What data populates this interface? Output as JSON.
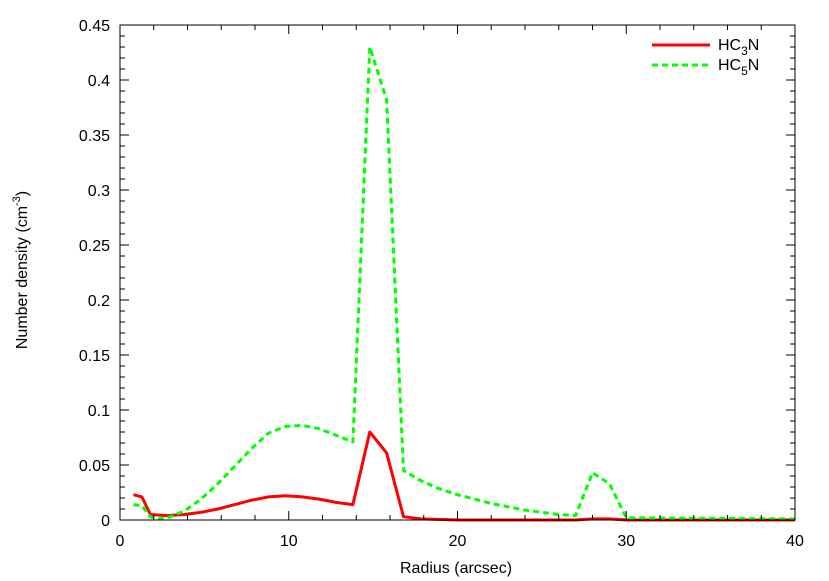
{
  "chart_data": {
    "type": "line",
    "title": "",
    "xlabel": "Radius (arcsec)",
    "ylabel": "Number density (cm",
    "ylabel_sup": "-3",
    "ylabel_close": ")",
    "xlim": [
      0,
      40
    ],
    "ylim": [
      0,
      0.45
    ],
    "x_ticks": [
      0,
      10,
      20,
      30,
      40
    ],
    "x_tick_labels": [
      "0",
      "10",
      "20",
      "30",
      "40"
    ],
    "y_ticks": [
      0,
      0.05,
      0.1,
      0.15,
      0.2,
      0.25,
      0.3,
      0.35,
      0.4,
      0.45
    ],
    "y_tick_labels": [
      "0",
      "0.05",
      "0.1",
      "0.15",
      "0.2",
      "0.25",
      "0.3",
      "0.35",
      "0.4",
      "0.45"
    ],
    "grid": false,
    "legend_position": "top-right",
    "series": [
      {
        "name": "HC3N",
        "legend": {
          "base": "HC",
          "sub": "3",
          "rest": "N"
        },
        "color": "#ff0000",
        "dash": "solid",
        "points": [
          [
            0.8,
            0.023
          ],
          [
            1.3,
            0.021
          ],
          [
            1.8,
            0.005
          ],
          [
            2.8,
            0.004
          ],
          [
            3.8,
            0.005
          ],
          [
            4.8,
            0.007
          ],
          [
            5.8,
            0.01
          ],
          [
            6.8,
            0.014
          ],
          [
            7.8,
            0.018
          ],
          [
            8.8,
            0.021
          ],
          [
            9.8,
            0.022
          ],
          [
            10.8,
            0.021
          ],
          [
            11.8,
            0.019
          ],
          [
            12.8,
            0.016
          ],
          [
            13.8,
            0.014
          ],
          [
            14.8,
            0.08
          ],
          [
            15.8,
            0.061
          ],
          [
            16.8,
            0.003
          ],
          [
            17.8,
            0.001
          ],
          [
            20,
            0.0
          ],
          [
            27,
            0.0
          ],
          [
            28,
            0.001
          ],
          [
            29,
            0.001
          ],
          [
            30,
            0.0
          ],
          [
            40,
            0.0
          ]
        ]
      },
      {
        "name": "HC5N",
        "legend": {
          "base": "HC",
          "sub": "5",
          "rest": "N"
        },
        "color": "#00ff00",
        "dash": "dashed",
        "points": [
          [
            0.8,
            0.014
          ],
          [
            1.3,
            0.013
          ],
          [
            1.8,
            0.003
          ],
          [
            2.3,
            0.001
          ],
          [
            2.8,
            0.002
          ],
          [
            3.8,
            0.008
          ],
          [
            4.8,
            0.019
          ],
          [
            5.8,
            0.033
          ],
          [
            6.8,
            0.049
          ],
          [
            7.8,
            0.065
          ],
          [
            8.8,
            0.079
          ],
          [
            9.8,
            0.085
          ],
          [
            10.8,
            0.086
          ],
          [
            11.8,
            0.083
          ],
          [
            12.8,
            0.077
          ],
          [
            13.8,
            0.071
          ],
          [
            14.8,
            0.43
          ],
          [
            15.8,
            0.382
          ],
          [
            16.8,
            0.045
          ],
          [
            17.8,
            0.036
          ],
          [
            18.8,
            0.029
          ],
          [
            20,
            0.023
          ],
          [
            22,
            0.015
          ],
          [
            24,
            0.009
          ],
          [
            26,
            0.005
          ],
          [
            27,
            0.004
          ],
          [
            28,
            0.043
          ],
          [
            29,
            0.033
          ],
          [
            30,
            0.002
          ],
          [
            40,
            0.001
          ]
        ]
      }
    ]
  }
}
